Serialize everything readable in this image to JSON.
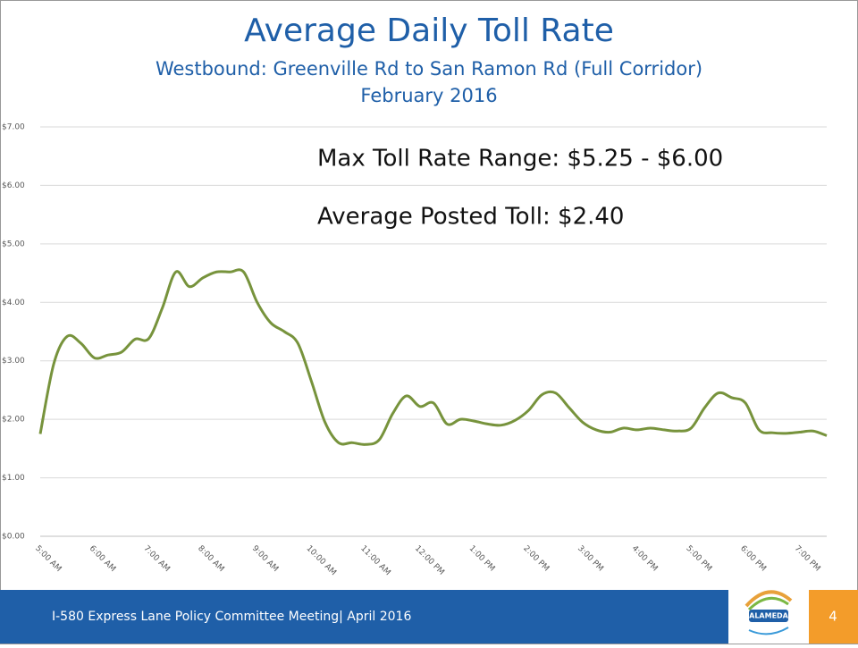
{
  "chart_data": {
    "type": "line",
    "title": "Average Daily Toll Rate",
    "subtitle": "Westbound: Greenville Rd to San Ramon Rd (Full Corridor)",
    "period": "February 2016",
    "annotations": [
      "Max Toll Rate Range: $5.25 - $6.00",
      "Average Posted Toll: $2.40"
    ],
    "categories": [
      "5:00 AM",
      null,
      null,
      null,
      "6:00 AM",
      null,
      null,
      null,
      "7:00 AM",
      null,
      null,
      null,
      "8:00 AM",
      null,
      null,
      null,
      "9:00 AM",
      null,
      null,
      null,
      "10:00 AM",
      null,
      null,
      null,
      "11:00 AM",
      null,
      null,
      null,
      "12:00 PM",
      null,
      null,
      null,
      "1:00 PM",
      null,
      null,
      null,
      "2:00 PM",
      null,
      null,
      null,
      "3:00 PM",
      null,
      null,
      null,
      "4:00 PM",
      null,
      null,
      null,
      "5:00 PM",
      null,
      null,
      null,
      "6:00 PM",
      null,
      null,
      null,
      "7:00 PM",
      null,
      null
    ],
    "series": [
      {
        "color": "#77933c",
        "values": [
          1.75,
          2.95,
          3.42,
          3.3,
          3.05,
          3.1,
          3.15,
          3.37,
          3.38,
          3.9,
          4.52,
          4.27,
          4.42,
          4.52,
          4.52,
          4.52,
          4.0,
          3.65,
          3.5,
          3.3,
          2.65,
          1.95,
          1.6,
          1.6,
          1.57,
          1.65,
          2.1,
          2.4,
          2.22,
          2.28,
          1.92,
          2.0,
          1.97,
          1.92,
          1.9,
          1.98,
          2.15,
          2.42,
          2.45,
          2.2,
          1.95,
          1.82,
          1.78,
          1.85,
          1.82,
          1.85,
          1.82,
          1.8,
          1.85,
          2.2,
          2.45,
          2.37,
          2.28,
          1.82,
          1.77,
          1.76,
          1.78,
          1.8,
          1.72
        ]
      }
    ],
    "ylim": [
      0,
      7
    ],
    "yticks": [
      {
        "value": 0,
        "label": "$0.00"
      },
      {
        "value": 1,
        "label": "$1.00"
      },
      {
        "value": 2,
        "label": "$2.00"
      },
      {
        "value": 3,
        "label": "$3.00"
      },
      {
        "value": 4,
        "label": "$4.00"
      },
      {
        "value": 5,
        "label": "$5.00"
      },
      {
        "value": 6,
        "label": "$6.00"
      },
      {
        "value": 7,
        "label": "$7.00"
      }
    ],
    "grid": true
  },
  "footer": {
    "text": "I-580 Express Lane Policy Committee Meeting| April 2016",
    "logo_text": "ALAMEDA",
    "page_number": "4"
  }
}
